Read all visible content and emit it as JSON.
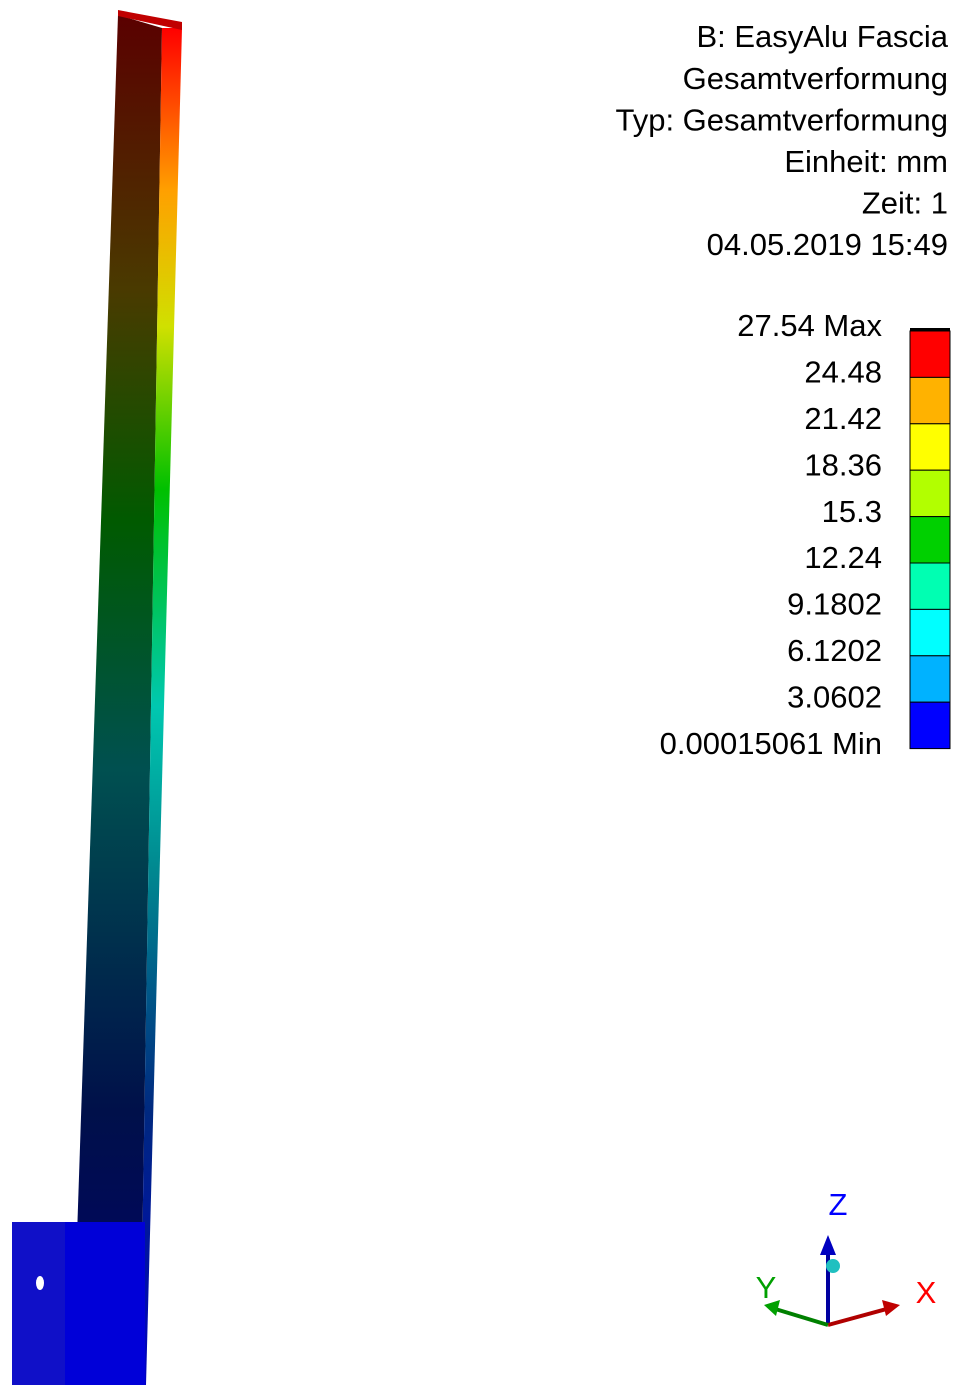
{
  "header": {
    "lines": [
      "B: EasyAlu Fascia",
      "Gesamtverformung",
      "Typ: Gesamtverformung",
      "Einheit: mm",
      "Zeit: 1",
      "04.05.2019 15:49"
    ]
  },
  "legend": {
    "labels": [
      "27.54 Max",
      "24.48",
      "21.42",
      "18.36",
      "15.3",
      "12.24",
      "9.1802",
      "6.1202",
      "3.0602",
      "0.00015061 Min"
    ],
    "colors": [
      "#ff0000",
      "#ffb200",
      "#ffff00",
      "#b2ff00",
      "#00d000",
      "#00ffb2",
      "#00ffff",
      "#00b2ff",
      "#0000ff"
    ]
  },
  "triad": {
    "x": "X",
    "y": "Y",
    "z": "Z"
  }
}
